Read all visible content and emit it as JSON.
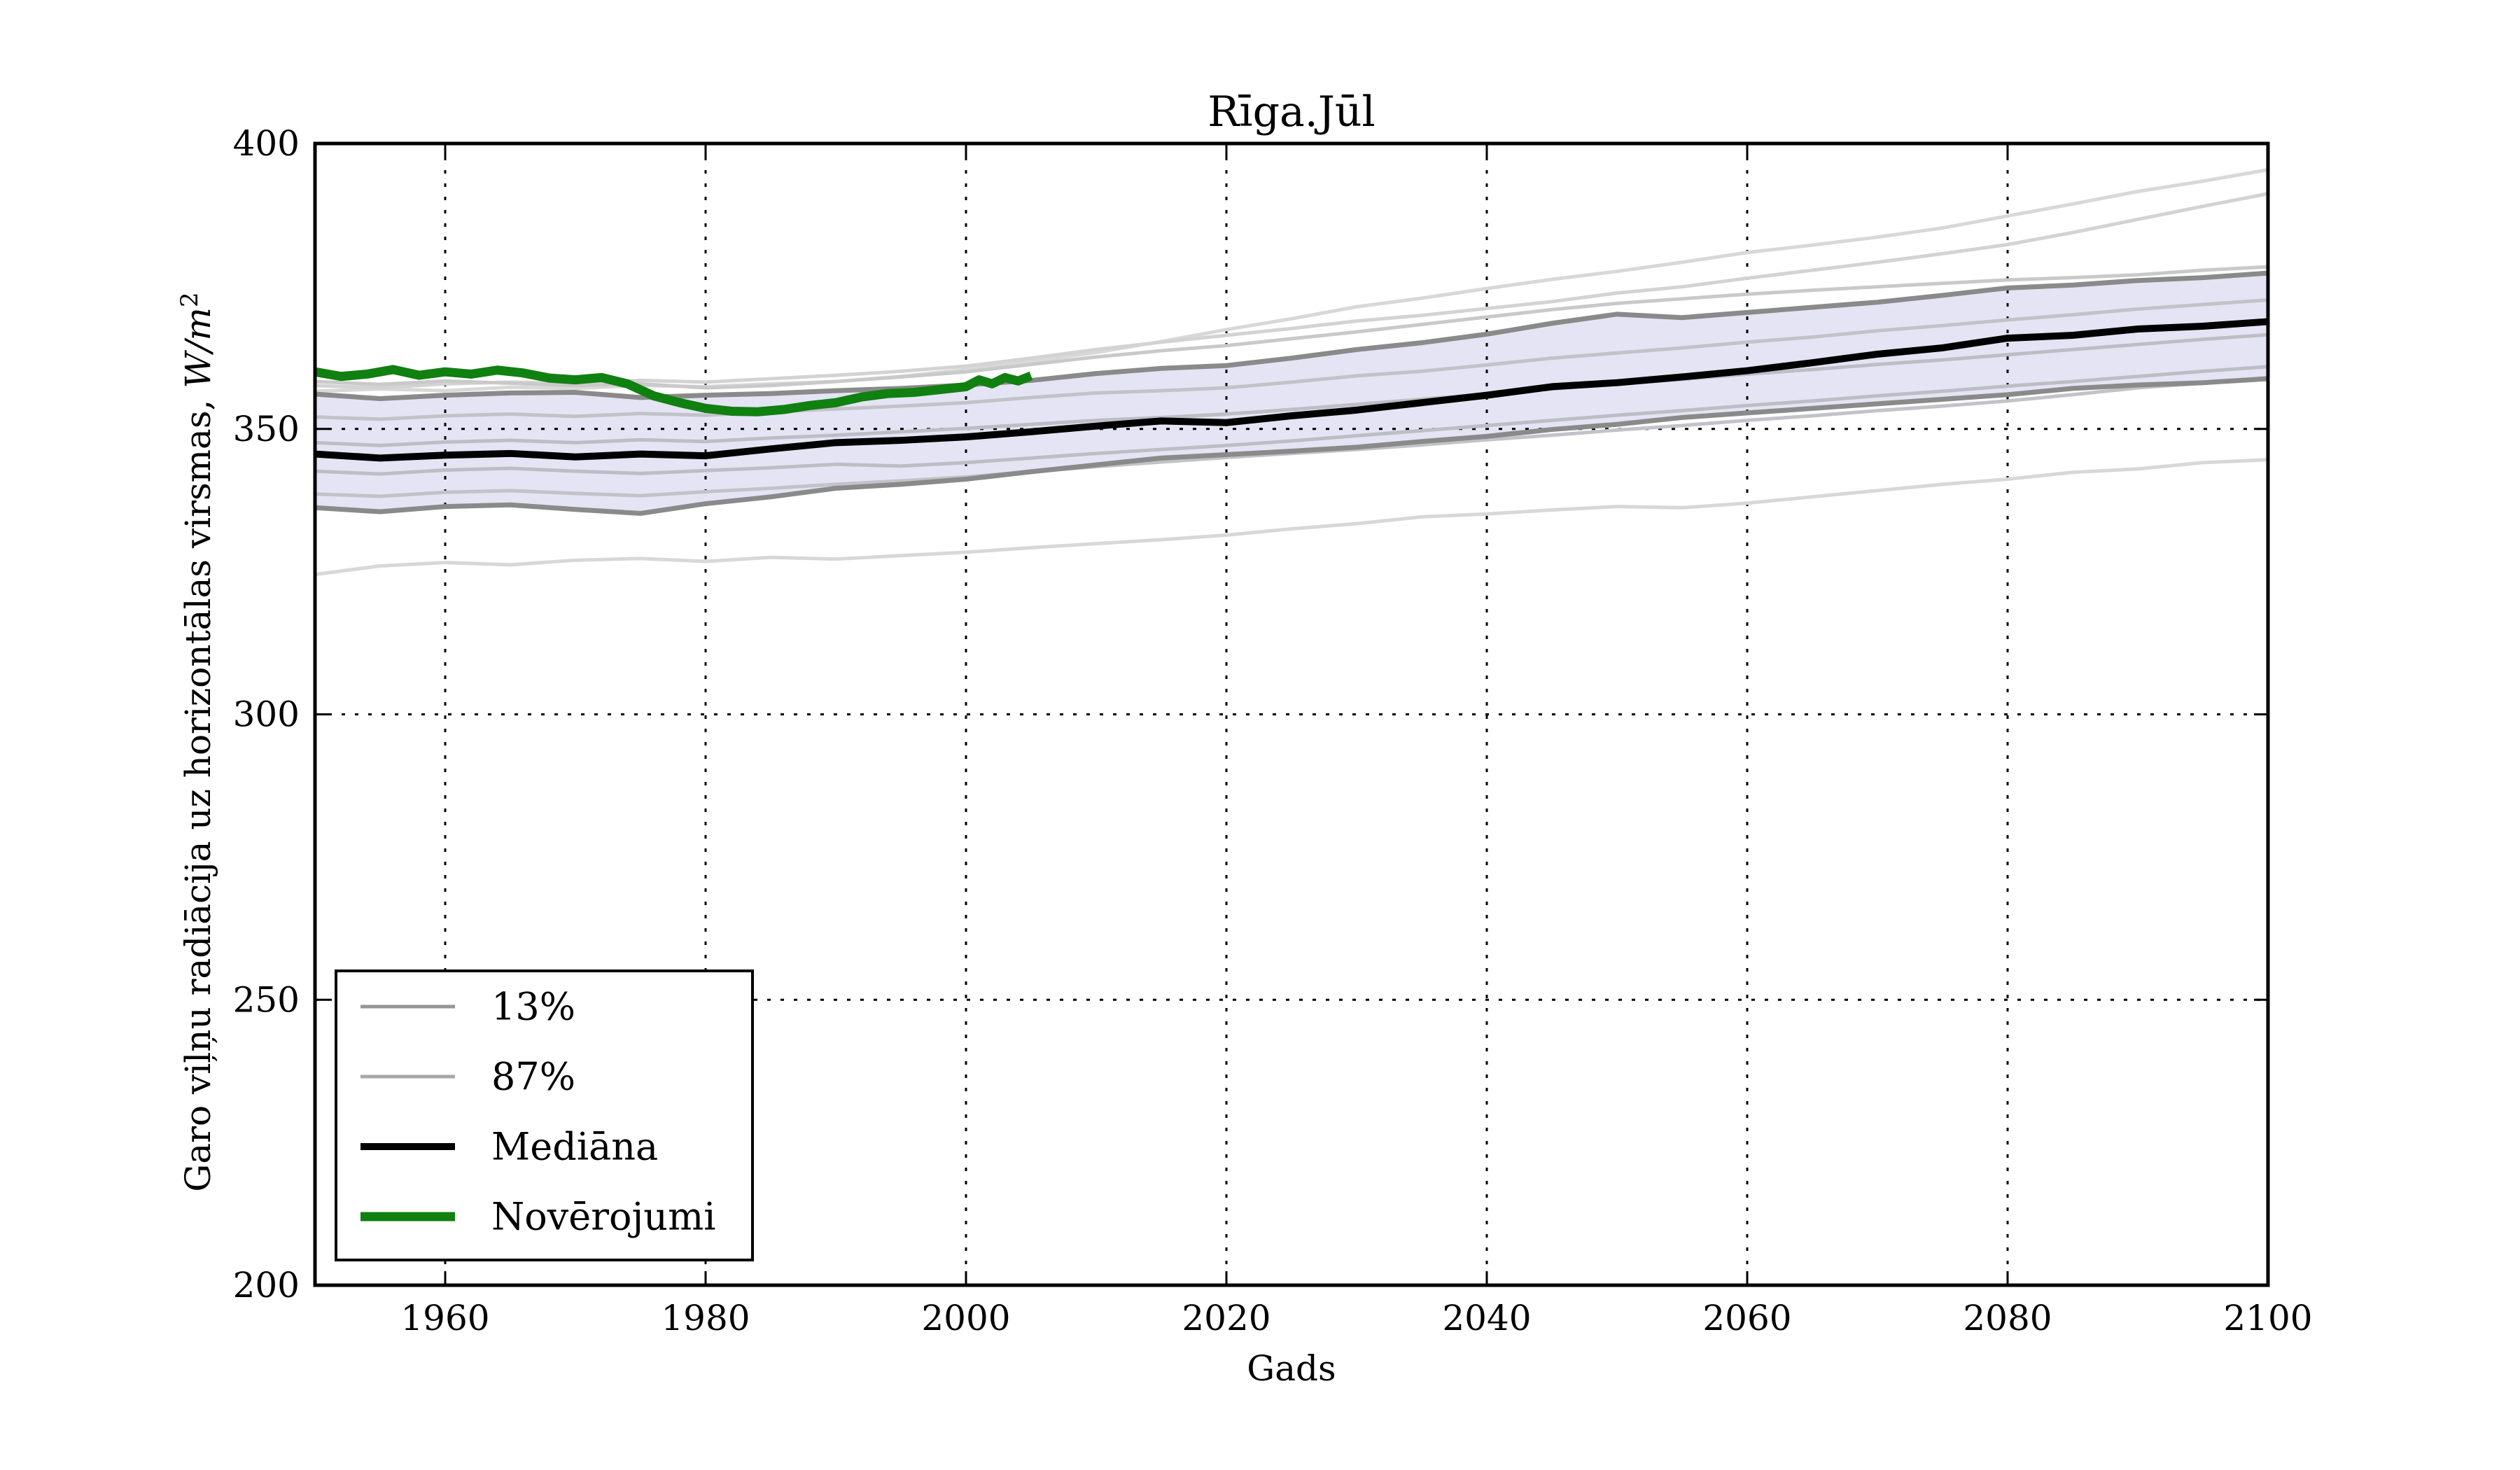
{
  "page": {
    "background": "#ffffff"
  },
  "chart_data": {
    "type": "line",
    "title": "Rīga.Jūl",
    "xlabel": "Gads",
    "ylabel_main": "Garo viļņu radiācija uz horizontālas virsmas, ",
    "ylabel_math": "W/m",
    "ylabel_sup": "2",
    "xlim": [
      1950,
      2100
    ],
    "ylim": [
      200,
      400
    ],
    "xticks": [
      1960,
      1980,
      2000,
      2020,
      2040,
      2060,
      2080,
      2100
    ],
    "yticks": [
      200,
      250,
      300,
      350,
      400
    ],
    "grid": {
      "on": true,
      "style": "dotted",
      "color": "#000000"
    },
    "frame_color": "#000000",
    "band": {
      "upper": "87%",
      "lower": "13%",
      "fill": "#e4e4f4"
    },
    "legend": [
      {
        "label": "13%",
        "color": "#969696",
        "width": 5
      },
      {
        "label": "87%",
        "color": "#a8a8a8",
        "width": 5
      },
      {
        "label": "Mediāna",
        "color": "#000000",
        "width": 10
      },
      {
        "label": "Novērojumi",
        "color": "#108010",
        "width": 13
      }
    ],
    "years": [
      1950,
      1955,
      1960,
      1965,
      1970,
      1975,
      1980,
      1985,
      1990,
      1995,
      2000,
      2005,
      2010,
      2015,
      2020,
      2025,
      2030,
      2035,
      2040,
      2045,
      2050,
      2055,
      2060,
      2065,
      2070,
      2075,
      2080,
      2085,
      2090,
      2095,
      2100
    ],
    "series": [
      {
        "name": "run-low",
        "role": "ensemble",
        "color": "#d8d8d8",
        "width": 5,
        "y": [
          324.5,
          326.0,
          326.6,
          326.2,
          327.0,
          327.3,
          326.8,
          327.5,
          327.2,
          327.8,
          328.4,
          329.2,
          329.9,
          330.6,
          331.4,
          332.5,
          333.4,
          334.6,
          335.1,
          335.8,
          336.4,
          336.2,
          337.0,
          338.1,
          339.2,
          340.3,
          341.2,
          342.4,
          343.0,
          344.1,
          344.6
        ]
      },
      {
        "name": "run-high",
        "role": "ensemble",
        "color": "#d8d8d8",
        "width": 5,
        "y": [
          356.6,
          357.0,
          356.7,
          357.3,
          357.1,
          357.6,
          357.4,
          357.9,
          358.3,
          359.2,
          360.4,
          361.8,
          363.4,
          365.3,
          367.4,
          369.3,
          371.4,
          372.9,
          374.6,
          376.2,
          377.6,
          379.2,
          380.9,
          382.2,
          383.6,
          385.2,
          387.3,
          389.4,
          391.6,
          393.4,
          395.4
        ]
      },
      {
        "name": "run-3",
        "role": "ensemble",
        "color": "#d3d3d3",
        "width": 5,
        "y": [
          357.6,
          357.2,
          357.9,
          358.2,
          358.0,
          358.5,
          358.2,
          358.8,
          359.4,
          360.1,
          361.0,
          362.4,
          363.9,
          365.2,
          366.4,
          367.6,
          368.9,
          369.9,
          371.1,
          372.3,
          373.8,
          374.9,
          376.4,
          377.8,
          379.2,
          380.7,
          382.3,
          384.4,
          386.7,
          389.0,
          391.2
        ]
      },
      {
        "name": "run-4",
        "role": "ensemble",
        "color": "#c9c9c9",
        "width": 5,
        "y": [
          358.3,
          357.8,
          358.4,
          358.0,
          357.6,
          357.9,
          357.2,
          357.6,
          358.3,
          359.1,
          360.0,
          361.3,
          362.6,
          363.7,
          364.6,
          365.8,
          367.0,
          368.3,
          369.6,
          370.9,
          372.0,
          372.8,
          373.6,
          374.3,
          374.9,
          375.5,
          376.1,
          376.5,
          377.0,
          377.8,
          378.4
        ]
      },
      {
        "name": "run-5",
        "role": "ensemble",
        "color": "#c2c2c8",
        "width": 5,
        "y": [
          352.1,
          351.7,
          352.3,
          352.6,
          352.2,
          352.7,
          352.4,
          353.0,
          353.5,
          354.0,
          354.6,
          355.5,
          356.3,
          356.7,
          357.2,
          358.2,
          359.3,
          360.1,
          361.2,
          362.4,
          363.3,
          364.2,
          365.2,
          366.1,
          367.2,
          368.1,
          369.1,
          370.0,
          371.0,
          371.8,
          372.6
        ]
      },
      {
        "name": "run-6",
        "role": "ensemble",
        "color": "#bdbdc6",
        "width": 5,
        "y": [
          347.6,
          347.1,
          347.7,
          348.0,
          347.6,
          348.1,
          347.8,
          348.4,
          348.9,
          349.5,
          350.1,
          350.8,
          351.5,
          352.0,
          352.6,
          353.4,
          354.3,
          355.2,
          356.1,
          357.0,
          357.9,
          358.7,
          359.6,
          360.4,
          361.3,
          362.1,
          363.0,
          363.9,
          364.8,
          365.7,
          366.5
        ]
      },
      {
        "name": "run-7",
        "role": "ensemble",
        "color": "#bdbdc6",
        "width": 5,
        "y": [
          342.6,
          342.1,
          342.8,
          343.1,
          342.6,
          342.2,
          342.7,
          343.2,
          343.8,
          343.5,
          344.1,
          344.9,
          345.7,
          346.4,
          347.1,
          347.9,
          348.8,
          349.7,
          350.6,
          351.5,
          352.4,
          353.2,
          354.1,
          354.9,
          355.8,
          356.6,
          357.5,
          358.3,
          359.2,
          360.1,
          360.9
        ]
      },
      {
        "name": "run-8",
        "role": "ensemble",
        "color": "#c2c2c8",
        "width": 5,
        "y": [
          338.6,
          338.2,
          338.9,
          339.2,
          338.7,
          338.3,
          339.0,
          339.6,
          340.3,
          340.9,
          341.6,
          342.5,
          343.4,
          344.2,
          345.0,
          345.7,
          346.4,
          347.2,
          348.1,
          348.9,
          349.8,
          350.6,
          351.5,
          352.3,
          353.2,
          354.0,
          354.9,
          356.0,
          357.2,
          358.0,
          359.0
        ]
      },
      {
        "name": "13%",
        "role": "percentile-lower",
        "color": "#8a8a8a",
        "width": 7,
        "y": [
          336.2,
          335.5,
          336.4,
          336.7,
          335.9,
          335.2,
          336.9,
          338.1,
          339.6,
          340.3,
          341.2,
          342.5,
          343.7,
          344.9,
          345.5,
          346.1,
          346.8,
          347.8,
          348.7,
          349.9,
          350.8,
          352.0,
          352.8,
          353.6,
          354.4,
          355.2,
          356.0,
          357.1,
          357.7,
          358.1,
          358.8
        ]
      },
      {
        "name": "87%",
        "role": "percentile-upper",
        "color": "#8a8a8a",
        "width": 7,
        "y": [
          356.1,
          355.3,
          355.9,
          356.3,
          356.4,
          355.5,
          355.9,
          356.2,
          356.7,
          357.1,
          357.7,
          358.5,
          359.7,
          360.6,
          361.1,
          362.4,
          363.9,
          365.1,
          366.6,
          368.5,
          370.1,
          369.5,
          370.4,
          371.3,
          372.2,
          373.4,
          374.7,
          375.2,
          376.0,
          376.5,
          377.3
        ]
      },
      {
        "name": "Mediāna",
        "role": "median",
        "color": "#000000",
        "width": 10,
        "y": [
          345.6,
          344.9,
          345.4,
          345.7,
          345.1,
          345.6,
          345.3,
          346.5,
          347.6,
          348.0,
          348.6,
          349.5,
          350.5,
          351.4,
          351.1,
          352.3,
          353.3,
          354.6,
          355.9,
          357.4,
          358.1,
          359.1,
          360.2,
          361.6,
          363.1,
          364.2,
          365.9,
          366.4,
          367.5,
          368.0,
          368.8
        ]
      },
      {
        "name": "Novērojumi",
        "role": "observations",
        "color": "#108010",
        "width": 13,
        "x": [
          1950,
          1952,
          1954,
          1956,
          1958,
          1960,
          1962,
          1964,
          1966,
          1968,
          1970,
          1972,
          1974,
          1976,
          1978,
          1980,
          1982,
          1984,
          1986,
          1988,
          1990,
          1992,
          1994,
          1996,
          1998,
          2000,
          2001,
          2002,
          2003,
          2004,
          2005
        ],
        "y": [
          360.0,
          359.2,
          359.6,
          360.4,
          359.4,
          360.0,
          359.6,
          360.3,
          359.8,
          358.9,
          358.6,
          359.0,
          357.9,
          355.8,
          354.6,
          353.6,
          353.1,
          353.0,
          353.4,
          354.1,
          354.6,
          355.6,
          356.2,
          356.4,
          356.9,
          357.4,
          358.6,
          357.9,
          359.0,
          358.4,
          359.3
        ]
      }
    ]
  }
}
